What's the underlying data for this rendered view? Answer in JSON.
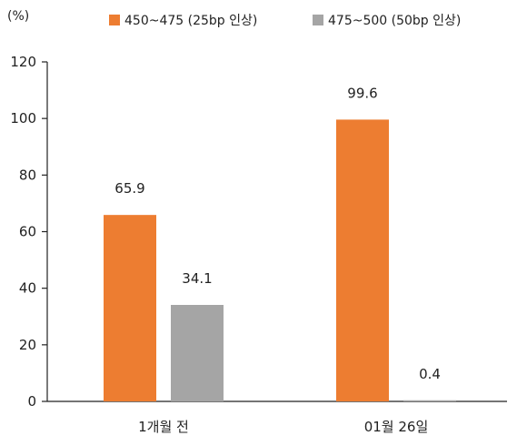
{
  "chart_data": {
    "type": "bar",
    "unit_label": "(%)",
    "categories": [
      "1개월 전",
      "01월 26일"
    ],
    "series": [
      {
        "name": "450~475 (25bp 인상)",
        "color": "#ED7D31",
        "values": [
          65.9,
          0
        ],
        "labels": [
          "65.9",
          ""
        ]
      },
      {
        "name": "475~500 (50bp 인상)",
        "color": "#A5A5A5",
        "values": [
          34.1,
          0.4
        ],
        "labels": [
          "34.1",
          "0.4"
        ]
      }
    ],
    "series_overrides": [
      {
        "series": 0,
        "category": 1,
        "value": 99.6,
        "label": "99.6"
      },
      {
        "series": 1,
        "category": 1,
        "value": 0.4,
        "label": "0.4"
      }
    ],
    "ylim": [
      0,
      120
    ],
    "yticks": [
      "0",
      "20",
      "40",
      "60",
      "80",
      "100",
      "120"
    ],
    "ytick_values": [
      0,
      20,
      40,
      60,
      80,
      100,
      120
    ],
    "grid": false,
    "legend_position": "top"
  }
}
